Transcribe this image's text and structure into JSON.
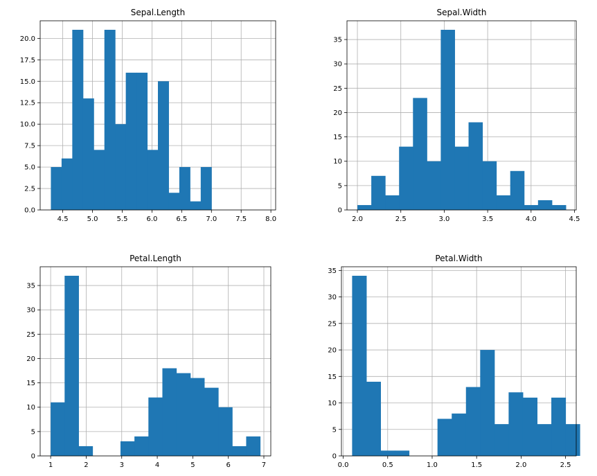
{
  "bar_color": "#1f77b4",
  "chart_data": [
    {
      "type": "bar",
      "title": "Sepal.Length",
      "xlim": [
        4.12,
        8.08
      ],
      "ylim": [
        0,
        22.05
      ],
      "xticks": [
        "4.5",
        "5.0",
        "5.5",
        "6.0",
        "6.5",
        "7.0",
        "7.5",
        "8.0"
      ],
      "yticks": [
        "0.0",
        "2.5",
        "5.0",
        "7.5",
        "10.0",
        "12.5",
        "15.0",
        "17.5",
        "20.0"
      ],
      "bins_start": 4.3,
      "bin_width": 0.18,
      "values": [
        5,
        6,
        21,
        13,
        7,
        21,
        10,
        16,
        16,
        7,
        15,
        2,
        5,
        1,
        5
      ],
      "xlabel": "",
      "ylabel": ""
    },
    {
      "type": "bar",
      "title": "Sepal.Width",
      "xlim": [
        1.88,
        4.52
      ],
      "ylim": [
        0,
        38.85
      ],
      "xticks": [
        "2.0",
        "2.5",
        "3.0",
        "3.5",
        "4.0",
        "4.5"
      ],
      "yticks": [
        "0",
        "5",
        "10",
        "15",
        "20",
        "25",
        "30",
        "35"
      ],
      "bins_start": 2.0,
      "bin_width": 0.16,
      "values": [
        1,
        7,
        3,
        13,
        23,
        10,
        37,
        13,
        18,
        10,
        3,
        8,
        1,
        2,
        1
      ],
      "xlabel": "",
      "ylabel": ""
    },
    {
      "type": "bar",
      "title": "Petal.Length",
      "xlim": [
        0.705,
        7.195
      ],
      "ylim": [
        0,
        38.85
      ],
      "xticks": [
        "1",
        "2",
        "3",
        "4",
        "5",
        "6",
        "7"
      ],
      "yticks": [
        "0",
        "5",
        "10",
        "15",
        "20",
        "25",
        "30",
        "35"
      ],
      "bins_start": 1.0,
      "bin_width": 0.393,
      "values": [
        11,
        37,
        2,
        0,
        0,
        3,
        4,
        12,
        18,
        17,
        16,
        14,
        10,
        2,
        4
      ],
      "xlabel": "",
      "ylabel": ""
    },
    {
      "type": "bar",
      "title": "Petal.Width",
      "xlim": [
        -0.02,
        2.62
      ],
      "ylim": [
        0,
        35.7
      ],
      "xticks": [
        "0.0",
        "0.5",
        "1.0",
        "1.5",
        "2.0",
        "2.5"
      ],
      "yticks": [
        "0",
        "5",
        "10",
        "15",
        "20",
        "25",
        "30",
        "35"
      ],
      "bins_start": 0.1,
      "bin_width": 0.16,
      "values": [
        34,
        14,
        1,
        1,
        0,
        0,
        7,
        8,
        13,
        20,
        6,
        12,
        11,
        6,
        11,
        6
      ],
      "xlabel": "",
      "ylabel": ""
    }
  ]
}
